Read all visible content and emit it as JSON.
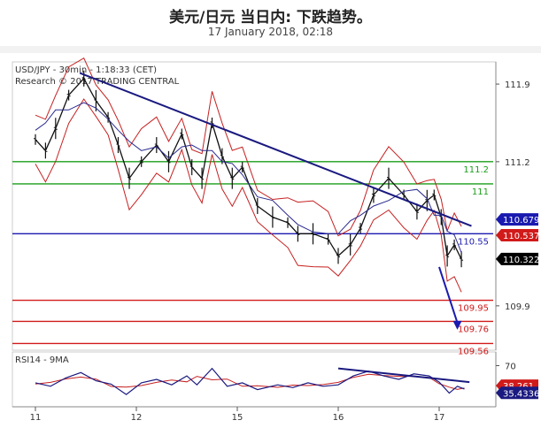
{
  "header": {
    "title": "美元/日元 当日内: 下跌趋势。",
    "date": "17 January 2018, 02:18"
  },
  "chart_data": {
    "type": "candlestick",
    "instrument_label": "USD/JPY - 30min - 1:18:33 (CET)",
    "copyright": "Research © 2017 TRADING CENTRAL",
    "x_ticks": [
      "11",
      "12",
      "15",
      "16",
      "17"
    ],
    "price_axis": {
      "ylim": [
        109.5,
        112.1
      ],
      "ticks": [
        {
          "label": "111.9",
          "value": 111.9
        },
        {
          "label": "111.2",
          "value": 111.2
        },
        {
          "label": "109.9",
          "value": 109.9
        }
      ]
    },
    "levels": [
      {
        "label": "111.2",
        "value": 111.2,
        "color": "#1a9e1a"
      },
      {
        "label": "111",
        "value": 111.0,
        "color": "#1a9e1a"
      },
      {
        "label": "110.55",
        "value": 110.55,
        "color": "#1a1ab0"
      },
      {
        "label": "109.95",
        "value": 109.95,
        "color": "#d11a1a"
      },
      {
        "label": "109.76",
        "value": 109.76,
        "color": "#d11a1a"
      },
      {
        "label": "109.56",
        "value": 109.56,
        "color": "#d11a1a"
      }
    ],
    "price_tags": [
      {
        "label": "110.679",
        "value": 110.679,
        "bg": "#1a1ab0",
        "fg": "#ffffff"
      },
      {
        "label": "110.537",
        "value": 110.537,
        "bg": "#d11a1a",
        "fg": "#ffffff"
      },
      {
        "label": "110.322",
        "value": 110.322,
        "bg": "#000000",
        "fg": "#ffffff"
      }
    ],
    "trendline": {
      "start": {
        "slot": 0.44,
        "value": 112.0
      },
      "end": {
        "slot": 4.32,
        "value": 110.62
      },
      "color": "#1a1a80"
    },
    "forecast_arrow": {
      "start": {
        "slot": 4.0,
        "value": 110.25
      },
      "end": {
        "slot": 4.18,
        "value": 109.7
      },
      "color": "#1a1ab0"
    },
    "price_path": [
      {
        "slot": 0.0,
        "value": 111.4
      },
      {
        "slot": 0.1,
        "value": 111.3
      },
      {
        "slot": 0.2,
        "value": 111.5
      },
      {
        "slot": 0.33,
        "value": 111.8
      },
      {
        "slot": 0.48,
        "value": 111.95
      },
      {
        "slot": 0.6,
        "value": 111.75
      },
      {
        "slot": 0.72,
        "value": 111.6
      },
      {
        "slot": 0.82,
        "value": 111.35
      },
      {
        "slot": 0.93,
        "value": 111.05
      },
      {
        "slot": 1.05,
        "value": 111.2
      },
      {
        "slot": 1.2,
        "value": 111.35
      },
      {
        "slot": 1.32,
        "value": 111.2
      },
      {
        "slot": 1.45,
        "value": 111.45
      },
      {
        "slot": 1.55,
        "value": 111.15
      },
      {
        "slot": 1.65,
        "value": 111.05
      },
      {
        "slot": 1.75,
        "value": 111.55
      },
      {
        "slot": 1.85,
        "value": 111.25
      },
      {
        "slot": 1.95,
        "value": 111.05
      },
      {
        "slot": 2.05,
        "value": 111.15
      },
      {
        "slot": 2.2,
        "value": 110.8
      },
      {
        "slot": 2.35,
        "value": 110.7
      },
      {
        "slot": 2.5,
        "value": 110.65
      },
      {
        "slot": 2.6,
        "value": 110.55
      },
      {
        "slot": 2.75,
        "value": 110.55
      },
      {
        "slot": 2.9,
        "value": 110.5
      },
      {
        "slot": 3.0,
        "value": 110.35
      },
      {
        "slot": 3.12,
        "value": 110.45
      },
      {
        "slot": 3.22,
        "value": 110.6
      },
      {
        "slot": 3.35,
        "value": 110.9
      },
      {
        "slot": 3.5,
        "value": 111.05
      },
      {
        "slot": 3.65,
        "value": 110.9
      },
      {
        "slot": 3.78,
        "value": 110.75
      },
      {
        "slot": 3.88,
        "value": 110.85
      },
      {
        "slot": 3.95,
        "value": 110.9
      },
      {
        "slot": 4.02,
        "value": 110.7
      },
      {
        "slot": 4.08,
        "value": 110.35
      },
      {
        "slot": 4.15,
        "value": 110.45
      },
      {
        "slot": 4.22,
        "value": 110.32
      }
    ],
    "rsi": {
      "label": "RSI14 - 9MA",
      "ylim": [
        10,
        90
      ],
      "ticks": [
        {
          "label": "70",
          "value": 70
        }
      ],
      "current": [
        {
          "label": "38.261",
          "value": 38.261,
          "bg": "#d11a1a",
          "fg": "#ffffff"
        },
        {
          "label": "35.4336",
          "value": 35.4336,
          "bg": "#1a1a80",
          "fg": "#ffffff"
        }
      ],
      "trendline": {
        "start": {
          "slot": 3.0,
          "value": 66
        },
        "end": {
          "slot": 4.3,
          "value": 46
        },
        "color": "#1a1a80"
      },
      "path": [
        {
          "slot": 0.0,
          "value": 45
        },
        {
          "slot": 0.15,
          "value": 40
        },
        {
          "slot": 0.3,
          "value": 52
        },
        {
          "slot": 0.45,
          "value": 60
        },
        {
          "slot": 0.6,
          "value": 48
        },
        {
          "slot": 0.75,
          "value": 43
        },
        {
          "slot": 0.9,
          "value": 28
        },
        {
          "slot": 1.05,
          "value": 45
        },
        {
          "slot": 1.2,
          "value": 50
        },
        {
          "slot": 1.35,
          "value": 42
        },
        {
          "slot": 1.5,
          "value": 55
        },
        {
          "slot": 1.6,
          "value": 42
        },
        {
          "slot": 1.75,
          "value": 66
        },
        {
          "slot": 1.9,
          "value": 40
        },
        {
          "slot": 2.05,
          "value": 45
        },
        {
          "slot": 2.2,
          "value": 35
        },
        {
          "slot": 2.4,
          "value": 42
        },
        {
          "slot": 2.55,
          "value": 38
        },
        {
          "slot": 2.7,
          "value": 45
        },
        {
          "slot": 2.85,
          "value": 40
        },
        {
          "slot": 3.0,
          "value": 42
        },
        {
          "slot": 3.15,
          "value": 55
        },
        {
          "slot": 3.3,
          "value": 62
        },
        {
          "slot": 3.45,
          "value": 55
        },
        {
          "slot": 3.6,
          "value": 50
        },
        {
          "slot": 3.75,
          "value": 58
        },
        {
          "slot": 3.9,
          "value": 55
        },
        {
          "slot": 4.0,
          "value": 46
        },
        {
          "slot": 4.1,
          "value": 30
        },
        {
          "slot": 4.18,
          "value": 40
        },
        {
          "slot": 4.25,
          "value": 36
        }
      ]
    }
  }
}
